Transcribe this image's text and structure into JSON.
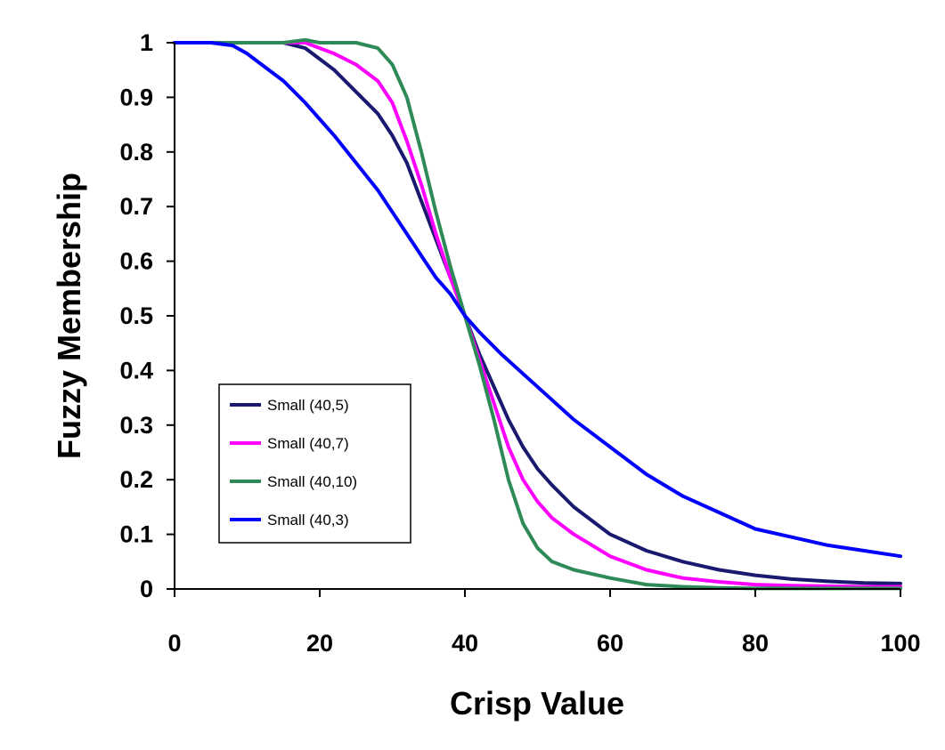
{
  "chart_data": {
    "type": "line",
    "xlabel": "Crisp Value",
    "ylabel": "Fuzzy Membership",
    "xlim": [
      0,
      100
    ],
    "ylim": [
      0,
      1
    ],
    "xticks": [
      "0",
      "20",
      "40",
      "60",
      "80",
      "100"
    ],
    "yticks": [
      "0",
      "0.1",
      "0.2",
      "0.3",
      "0.4",
      "0.5",
      "0.6",
      "0.7",
      "0.8",
      "0.9",
      "1"
    ],
    "grid": false,
    "legend_position": "left-center",
    "series": [
      {
        "name": "Small (40,5)",
        "color": "#191970",
        "x": [
          0,
          5,
          10,
          15,
          18,
          20,
          22,
          25,
          28,
          30,
          32,
          34,
          36,
          38,
          40,
          42,
          44,
          46,
          48,
          50,
          52,
          55,
          60,
          65,
          70,
          75,
          80,
          85,
          90,
          95,
          100
        ],
        "y": [
          1,
          1,
          1,
          1,
          0.99,
          0.97,
          0.95,
          0.91,
          0.87,
          0.83,
          0.78,
          0.71,
          0.64,
          0.57,
          0.5,
          0.43,
          0.37,
          0.31,
          0.26,
          0.22,
          0.19,
          0.15,
          0.1,
          0.07,
          0.05,
          0.035,
          0.025,
          0.018,
          0.014,
          0.011,
          0.01
        ]
      },
      {
        "name": "Small (40,7)",
        "color": "#ff00ff",
        "x": [
          0,
          5,
          10,
          15,
          18,
          20,
          22,
          25,
          28,
          30,
          32,
          34,
          36,
          38,
          40,
          42,
          44,
          46,
          48,
          50,
          52,
          55,
          60,
          65,
          70,
          75,
          80,
          85,
          90,
          95,
          100
        ],
        "y": [
          1,
          1,
          1,
          1,
          1,
          0.99,
          0.98,
          0.96,
          0.93,
          0.89,
          0.82,
          0.74,
          0.65,
          0.57,
          0.5,
          0.42,
          0.34,
          0.26,
          0.2,
          0.16,
          0.13,
          0.1,
          0.06,
          0.035,
          0.02,
          0.013,
          0.008,
          0.006,
          0.005,
          0.004,
          0.004
        ]
      },
      {
        "name": "Small (40,10)",
        "color": "#2e8b57",
        "x": [
          0,
          5,
          10,
          15,
          18,
          20,
          22,
          25,
          28,
          30,
          32,
          34,
          36,
          38,
          40,
          42,
          44,
          46,
          48,
          50,
          52,
          55,
          60,
          65,
          70,
          75,
          80,
          85,
          90,
          95,
          100
        ],
        "y": [
          1,
          1,
          1,
          1,
          1.005,
          1,
          1,
          1,
          0.99,
          0.96,
          0.9,
          0.8,
          0.69,
          0.59,
          0.5,
          0.41,
          0.31,
          0.2,
          0.12,
          0.075,
          0.05,
          0.035,
          0.02,
          0.008,
          0.004,
          0.002,
          0.001,
          0.001,
          0.001,
          0.001,
          0.001
        ]
      },
      {
        "name": "Small (40,3)",
        "color": "#0000ff",
        "x": [
          0,
          5,
          8,
          10,
          12,
          15,
          18,
          20,
          22,
          25,
          28,
          30,
          32,
          34,
          36,
          38,
          40,
          42,
          45,
          50,
          55,
          60,
          65,
          70,
          75,
          80,
          85,
          90,
          95,
          100
        ],
        "y": [
          1,
          1,
          0.995,
          0.98,
          0.96,
          0.93,
          0.89,
          0.86,
          0.83,
          0.78,
          0.73,
          0.69,
          0.65,
          0.61,
          0.57,
          0.54,
          0.5,
          0.47,
          0.43,
          0.37,
          0.31,
          0.26,
          0.21,
          0.17,
          0.14,
          0.11,
          0.095,
          0.08,
          0.07,
          0.06
        ]
      }
    ]
  }
}
